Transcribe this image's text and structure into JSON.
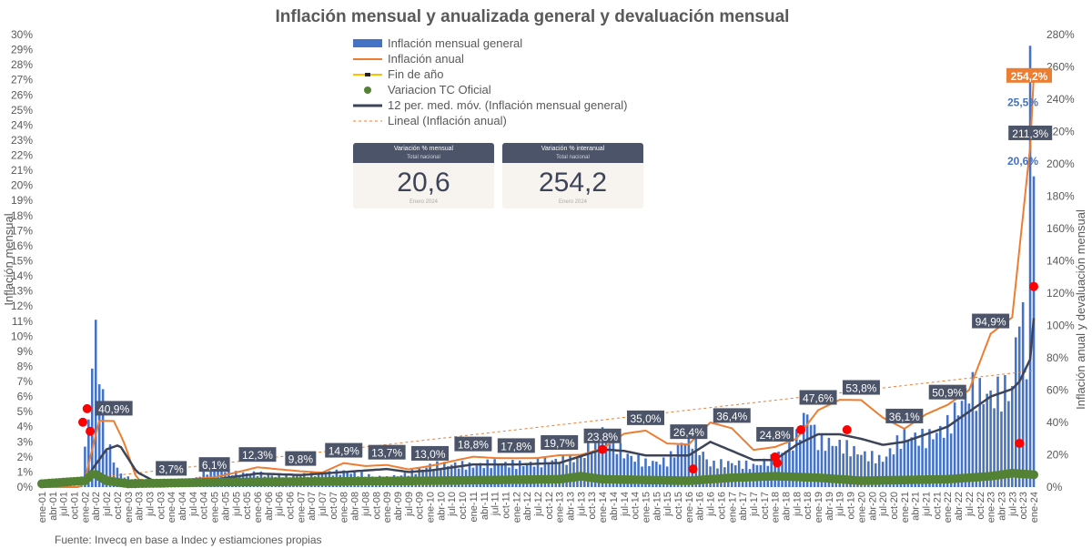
{
  "chart_data": {
    "type": "bar",
    "title": "Inflación mensual y anualizada general y devaluación mensual",
    "ylabel": "Inflación mensual",
    "y2label": "Inflación anual y devaluación mensual",
    "ylim": [
      0,
      30
    ],
    "y2lim": [
      0,
      280
    ],
    "y_ticks": [
      "0%",
      "1%",
      "2%",
      "3%",
      "4%",
      "5%",
      "6%",
      "7%",
      "8%",
      "9%",
      "10%",
      "11%",
      "12%",
      "13%",
      "14%",
      "15%",
      "16%",
      "17%",
      "18%",
      "19%",
      "20%",
      "21%",
      "22%",
      "23%",
      "24%",
      "25%",
      "26%",
      "27%",
      "28%",
      "29%",
      "30%"
    ],
    "y2_ticks": [
      "0%",
      "20%",
      "40%",
      "60%",
      "80%",
      "100%",
      "120%",
      "140%",
      "160%",
      "180%",
      "200%",
      "220%",
      "240%",
      "260%",
      "280%"
    ],
    "x_ticks": [
      "ene-01",
      "abr-01",
      "jul-01",
      "oct-01",
      "ene-02",
      "abr-02",
      "jul-02",
      "oct-02",
      "ene-03",
      "abr-03",
      "jul-03",
      "oct-03",
      "ene-04",
      "abr-04",
      "jul-04",
      "oct-04",
      "ene-05",
      "abr-05",
      "jul-05",
      "oct-05",
      "ene-06",
      "abr-06",
      "jul-06",
      "oct-06",
      "ene-07",
      "abr-07",
      "jul-07",
      "oct-07",
      "ene-08",
      "abr-08",
      "jul-08",
      "oct-08",
      "ene-09",
      "abr-09",
      "jul-09",
      "oct-09",
      "ene-10",
      "abr-10",
      "jul-10",
      "oct-10",
      "ene-11",
      "abr-11",
      "jul-11",
      "oct-11",
      "ene-12",
      "abr-12",
      "jul-12",
      "oct-12",
      "ene-13",
      "abr-13",
      "jul-13",
      "oct-13",
      "ene-14",
      "abr-14",
      "jul-14",
      "oct-14",
      "ene-15",
      "abr-15",
      "jul-15",
      "oct-15",
      "ene-16",
      "abr-16",
      "jul-16",
      "oct-16",
      "ene-17",
      "abr-17",
      "jul-17",
      "oct-17",
      "ene-18",
      "abr-18",
      "jul-18",
      "oct-18",
      "ene-19",
      "abr-19",
      "jul-19",
      "oct-19",
      "ene-20",
      "abr-20",
      "jul-20",
      "oct-20",
      "ene-21",
      "abr-21",
      "jul-21",
      "oct-21",
      "ene-22",
      "abr-22",
      "jul-22",
      "oct-22",
      "ene-23",
      "abr-23",
      "jul-23",
      "oct-23",
      "ene-24"
    ],
    "legend": [
      "Inflación mensual general",
      "Inflación anual",
      "Fin de año",
      "Variacion TC Oficial",
      "12 per. med. móv. (Inflación mensual general)",
      "Lineal (Inflación anual)"
    ],
    "colors": {
      "monthly": "#4472c4",
      "annual": "#ed7d31",
      "year_end": "#ffc000",
      "tc": "#548235",
      "moving_avg": "#3d4458",
      "linear": "#ed7d31",
      "red_markers": "#ff0000",
      "label_box": "#4b5468"
    },
    "series_monthly_knots": [
      [
        2001,
        0.0
      ],
      [
        2001.5,
        0.1
      ],
      [
        2001.9,
        0.0
      ],
      [
        2002.0,
        2.3
      ],
      [
        2002.25,
        10.4
      ],
      [
        2002.5,
        3.0
      ],
      [
        2002.8,
        0.9
      ],
      [
        2003.0,
        0.6
      ],
      [
        2003.5,
        0.2
      ],
      [
        2004.0,
        0.3
      ],
      [
        2004.5,
        0.5
      ],
      [
        2005.0,
        1.3
      ],
      [
        2005.5,
        0.9
      ],
      [
        2006.0,
        0.9
      ],
      [
        2006.5,
        0.7
      ],
      [
        2007.0,
        0.8
      ],
      [
        2007.5,
        0.9
      ],
      [
        2008.0,
        1.0
      ],
      [
        2008.5,
        0.8
      ],
      [
        2009.0,
        0.6
      ],
      [
        2009.5,
        0.9
      ],
      [
        2010.0,
        1.4
      ],
      [
        2010.5,
        1.5
      ],
      [
        2011.0,
        1.4
      ],
      [
        2011.5,
        1.6
      ],
      [
        2012.0,
        1.5
      ],
      [
        2012.5,
        1.6
      ],
      [
        2013.0,
        1.8
      ],
      [
        2013.5,
        1.9
      ],
      [
        2014.0,
        3.8
      ],
      [
        2014.5,
        2.2
      ],
      [
        2015.0,
        1.6
      ],
      [
        2015.5,
        1.7
      ],
      [
        2016.0,
        3.5
      ],
      [
        2016.5,
        1.5
      ],
      [
        2017.0,
        1.6
      ],
      [
        2017.5,
        1.4
      ],
      [
        2018.0,
        1.9
      ],
      [
        2018.5,
        3.2
      ],
      [
        2018.75,
        5.0
      ],
      [
        2019.0,
        3.0
      ],
      [
        2019.5,
        2.8
      ],
      [
        2020.0,
        2.2
      ],
      [
        2020.5,
        1.8
      ],
      [
        2021.0,
        3.4
      ],
      [
        2021.5,
        3.2
      ],
      [
        2022.0,
        4.0
      ],
      [
        2022.5,
        6.5
      ],
      [
        2022.75,
        6.2
      ],
      [
        2023.0,
        6.0
      ],
      [
        2023.5,
        6.5
      ],
      [
        2023.67,
        12.4
      ],
      [
        2023.83,
        8.3
      ],
      [
        2023.92,
        25.5
      ],
      [
        2024.0,
        20.6
      ]
    ],
    "series_annual_knots": [
      [
        2001,
        0
      ],
      [
        2001.9,
        0
      ],
      [
        2002.0,
        5
      ],
      [
        2002.33,
        41
      ],
      [
        2002.67,
        40.9
      ],
      [
        2002.9,
        28
      ],
      [
        2003.2,
        5
      ],
      [
        2003.6,
        3
      ],
      [
        2004.0,
        3.7
      ],
      [
        2004.5,
        5
      ],
      [
        2005.0,
        6.1
      ],
      [
        2005.5,
        9
      ],
      [
        2006.0,
        12.3
      ],
      [
        2006.5,
        11
      ],
      [
        2007.0,
        9.8
      ],
      [
        2007.5,
        9
      ],
      [
        2008.0,
        14.9
      ],
      [
        2008.5,
        13
      ],
      [
        2009.0,
        13.7
      ],
      [
        2009.5,
        11
      ],
      [
        2010.0,
        13.0
      ],
      [
        2010.5,
        16
      ],
      [
        2011.0,
        18.8
      ],
      [
        2011.5,
        18
      ],
      [
        2012.0,
        17.8
      ],
      [
        2012.5,
        18
      ],
      [
        2013.0,
        19.7
      ],
      [
        2013.5,
        20
      ],
      [
        2014.0,
        23.8
      ],
      [
        2014.5,
        33
      ],
      [
        2015.0,
        35.0
      ],
      [
        2015.5,
        27
      ],
      [
        2016.0,
        26.4
      ],
      [
        2016.5,
        40
      ],
      [
        2017.0,
        36.4
      ],
      [
        2017.5,
        23
      ],
      [
        2018.0,
        24.8
      ],
      [
        2018.5,
        30
      ],
      [
        2019.0,
        47.6
      ],
      [
        2019.5,
        54
      ],
      [
        2020.0,
        53.8
      ],
      [
        2020.5,
        43
      ],
      [
        2021.0,
        36.1
      ],
      [
        2021.5,
        45
      ],
      [
        2022.0,
        50.9
      ],
      [
        2022.5,
        60
      ],
      [
        2023.0,
        94.9
      ],
      [
        2023.5,
        105
      ],
      [
        2023.92,
        211.3
      ],
      [
        2024.0,
        254.2
      ]
    ],
    "series_moving_avg_knots": [
      [
        2001,
        0
      ],
      [
        2002.0,
        0.5
      ],
      [
        2002.5,
        2.5
      ],
      [
        2002.8,
        2.8
      ],
      [
        2003.2,
        1.0
      ],
      [
        2003.6,
        0.4
      ],
      [
        2004.0,
        0.3
      ],
      [
        2005.0,
        0.5
      ],
      [
        2006.0,
        0.9
      ],
      [
        2007.0,
        0.8
      ],
      [
        2008.0,
        1.0
      ],
      [
        2009.0,
        1.2
      ],
      [
        2009.5,
        1.0
      ],
      [
        2010.0,
        1.1
      ],
      [
        2011.0,
        1.5
      ],
      [
        2012.0,
        1.5
      ],
      [
        2013.0,
        1.6
      ],
      [
        2014.0,
        2.5
      ],
      [
        2014.5,
        2.4
      ],
      [
        2015.0,
        2.1
      ],
      [
        2016.0,
        2.1
      ],
      [
        2016.5,
        3.0
      ],
      [
        2017.0,
        2.4
      ],
      [
        2017.5,
        1.8
      ],
      [
        2018.0,
        1.8
      ],
      [
        2018.5,
        2.8
      ],
      [
        2019.0,
        3.5
      ],
      [
        2019.5,
        3.5
      ],
      [
        2020.0,
        3.2
      ],
      [
        2020.5,
        2.8
      ],
      [
        2021.0,
        3.0
      ],
      [
        2021.5,
        3.5
      ],
      [
        2022.0,
        4.0
      ],
      [
        2022.5,
        5.0
      ],
      [
        2023.0,
        6.0
      ],
      [
        2023.5,
        6.5
      ],
      [
        2023.67,
        7.0
      ],
      [
        2023.92,
        8.5
      ],
      [
        2024.0,
        11.2
      ]
    ],
    "series_tc_knots": [
      [
        2001,
        0.1
      ],
      [
        2002.0,
        0.3
      ],
      [
        2002.2,
        0.8
      ],
      [
        2002.5,
        0.3
      ],
      [
        2003.0,
        0.1
      ],
      [
        2005.0,
        0.2
      ],
      [
        2010.0,
        0.3
      ],
      [
        2013.0,
        0.4
      ],
      [
        2013.5,
        0.6
      ],
      [
        2014.0,
        0.4
      ],
      [
        2016.0,
        0.3
      ],
      [
        2017.0,
        0.5
      ],
      [
        2018.0,
        0.6
      ],
      [
        2019.0,
        0.5
      ],
      [
        2020.0,
        0.3
      ],
      [
        2022.0,
        0.4
      ],
      [
        2023.0,
        0.6
      ],
      [
        2023.5,
        0.8
      ],
      [
        2024.0,
        0.7
      ]
    ],
    "red_markers": [
      [
        2001.95,
        4.3
      ],
      [
        2002.05,
        5.2
      ],
      [
        2002.12,
        3.7
      ],
      [
        2014.0,
        2.5
      ],
      [
        2016.05,
        3.6
      ],
      [
        2016.1,
        1.2
      ],
      [
        2018.05,
        1.6
      ],
      [
        2018.0,
        2.0
      ],
      [
        2018.6,
        3.8
      ],
      [
        2019.67,
        3.8
      ],
      [
        2023.67,
        2.9
      ],
      [
        2024.0,
        13.3
      ]
    ],
    "annotations": [
      {
        "text": "40,9%",
        "x": 2002.67,
        "y2": 40.9
      },
      {
        "text": "3,7%",
        "x": 2004.0,
        "y2": 3.7
      },
      {
        "text": "6,1%",
        "x": 2005.0,
        "y2": 6.1
      },
      {
        "text": "12,3%",
        "x": 2006.0,
        "y2": 12.3
      },
      {
        "text": "9,8%",
        "x": 2007.0,
        "y2": 9.8
      },
      {
        "text": "14,9%",
        "x": 2008.0,
        "y2": 14.9
      },
      {
        "text": "13,7%",
        "x": 2009.0,
        "y2": 13.7
      },
      {
        "text": "13,0%",
        "x": 2010.0,
        "y2": 13.0
      },
      {
        "text": "18,8%",
        "x": 2011.0,
        "y2": 18.8
      },
      {
        "text": "17,8%",
        "x": 2012.0,
        "y2": 17.8
      },
      {
        "text": "19,7%",
        "x": 2013.0,
        "y2": 19.7
      },
      {
        "text": "23,8%",
        "x": 2014.0,
        "y2": 23.8
      },
      {
        "text": "35,0%",
        "x": 2015.0,
        "y2": 35.0
      },
      {
        "text": "26,4%",
        "x": 2016.0,
        "y2": 26.4
      },
      {
        "text": "36,4%",
        "x": 2017.0,
        "y2": 36.4
      },
      {
        "text": "24,8%",
        "x": 2018.0,
        "y2": 24.8
      },
      {
        "text": "47,6%",
        "x": 2019.0,
        "y2": 47.6
      },
      {
        "text": "53,8%",
        "x": 2020.0,
        "y2": 53.8
      },
      {
        "text": "36,1%",
        "x": 2021.0,
        "y2": 36.1
      },
      {
        "text": "50,9%",
        "x": 2022.0,
        "y2": 50.9
      },
      {
        "text": "94,9%",
        "x": 2023.0,
        "y2": 94.9
      },
      {
        "text": "211,3%",
        "x": 2023.92,
        "y2": 211.3
      }
    ],
    "callouts": {
      "annual_last": "254,2%",
      "monthly_peak": "25,5%",
      "monthly_last": "20,6%"
    }
  },
  "cards": [
    {
      "title": "Variación % mensual",
      "subtitle": "Total nacional",
      "value": "20,6",
      "date": "Enero 2024"
    },
    {
      "title": "Variación % interanual",
      "subtitle": "Total nacional",
      "value": "254,2",
      "date": "Enero 2024"
    }
  ],
  "source": "Fuente: Invecq en base a Indec y estiamciones propias"
}
